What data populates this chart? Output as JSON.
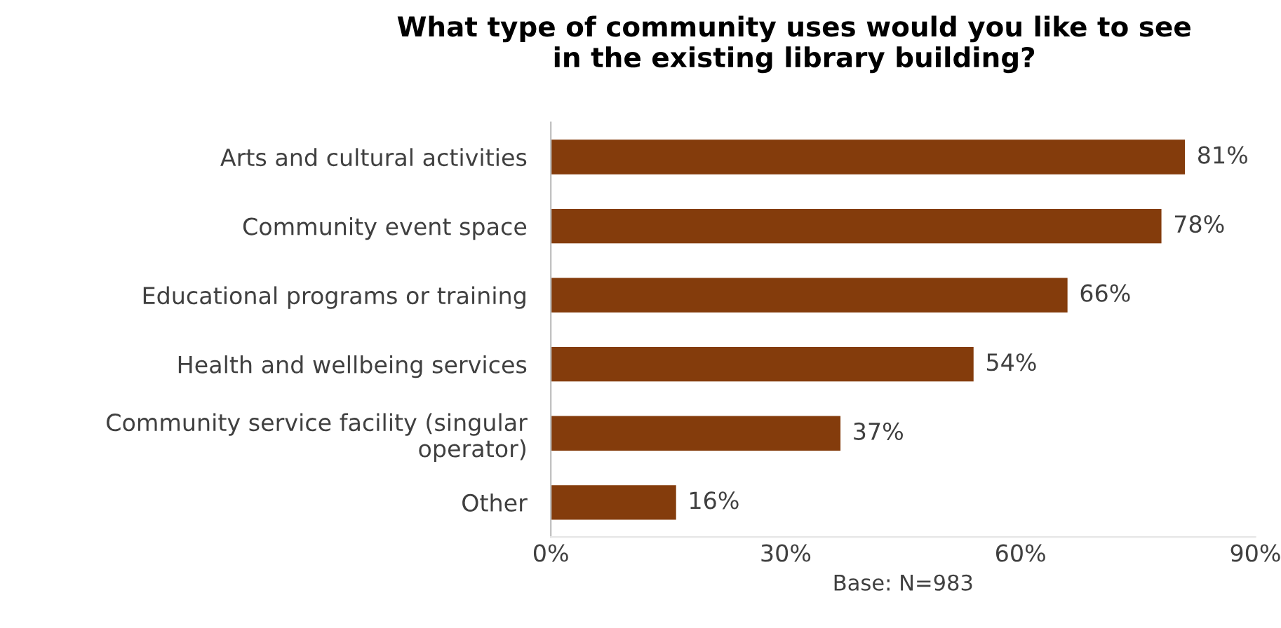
{
  "chart_data": {
    "type": "bar",
    "orientation": "horizontal",
    "title": "What type of community uses would you like to see\nin the existing library building?",
    "xlabel": "Base: N=983",
    "categories": [
      "Arts and cultural activities",
      "Community event space",
      "Educational programs or training",
      "Health and wellbeing services",
      "Community service facility (singular\noperator)",
      "Other"
    ],
    "values": [
      81,
      78,
      66,
      54,
      37,
      16
    ],
    "value_labels": [
      "81%",
      "78%",
      "66%",
      "54%",
      "37%",
      "16%"
    ],
    "color": "#843c0c",
    "xlim": [
      0,
      90
    ],
    "xticks": [
      {
        "value": 0,
        "label": "0%"
      },
      {
        "value": 30,
        "label": "30%"
      },
      {
        "value": 60,
        "label": "60%"
      },
      {
        "value": 90,
        "label": "90%"
      }
    ],
    "grid": false,
    "legend": false
  }
}
